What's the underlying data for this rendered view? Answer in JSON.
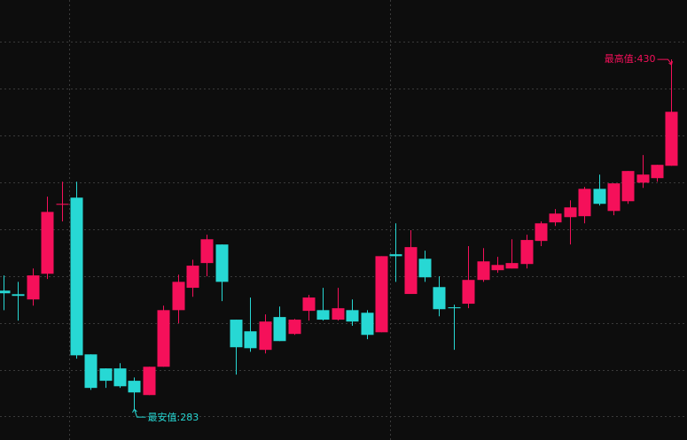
{
  "chart_data": {
    "type": "candlestick",
    "open": [
      332.8,
      331.3,
      329.1,
      339.9,
      368.9,
      371.9,
      306.0,
      300.1,
      300.1,
      294.9,
      288.9,
      300.8,
      324.6,
      334.0,
      344.4,
      352.2,
      320.6,
      315.7,
      307.9,
      321.7,
      314.6,
      324.3,
      324.6,
      320.6,
      324.6,
      323.5,
      315.3,
      348.1,
      331.4,
      346.2,
      334.3,
      325.8,
      327.3,
      337.3,
      341.4,
      342.1,
      344.0,
      353.7,
      361.5,
      363.7,
      364.1,
      375.6,
      366.3,
      370.4,
      378.2,
      380.1,
      385.3
    ],
    "high": [
      339.2,
      336.5,
      342.1,
      372.3,
      378.6,
      378.6,
      306.0,
      300.1,
      302.3,
      296.3,
      300.8,
      326.5,
      339.5,
      345.8,
      356.3,
      352.2,
      320.6,
      329.9,
      322.8,
      326.1,
      320.9,
      331.0,
      334.0,
      334.0,
      329.1,
      324.6,
      347.3,
      361.1,
      358.2,
      349.6,
      338.8,
      326.9,
      351.5,
      350.7,
      347.0,
      354.4,
      356.3,
      361.9,
      367.1,
      370.8,
      376.4,
      381.6,
      377.9,
      383.1,
      389.8,
      385.7,
      430
    ],
    "low": [
      324.6,
      320.2,
      326.5,
      337.7,
      361.9,
      304.2,
      291.1,
      291.9,
      291.9,
      283,
      288.9,
      300.8,
      319.1,
      330.2,
      338.8,
      328.4,
      297.5,
      307.1,
      306.4,
      311.6,
      314.2,
      320.2,
      320.2,
      320.2,
      318.0,
      312.4,
      315.3,
      336.5,
      331.4,
      336.5,
      322.0,
      307.9,
      325.4,
      336.5,
      340.3,
      342.1,
      342.1,
      351.5,
      360.0,
      352.2,
      361.1,
      368.6,
      364.5,
      369.3,
      376.0,
      378.6,
      385.3
    ],
    "close": [
      331.7,
      330.6,
      339.2,
      365.9,
      369.3,
      305.6,
      291.9,
      294.9,
      292.6,
      290.0,
      300.8,
      324.6,
      336.5,
      343.3,
      354.4,
      336.5,
      309.0,
      308.6,
      319.8,
      311.6,
      320.6,
      329.9,
      320.6,
      325.4,
      319.8,
      314.2,
      347.3,
      347.3,
      351.1,
      338.4,
      325.0,
      325.4,
      337.3,
      345.1,
      343.6,
      344.4,
      354.1,
      361.1,
      365.2,
      367.8,
      375.6,
      369.3,
      377.9,
      383.1,
      381.6,
      385.7,
      408.0
    ],
    "up_color": "#f5105a",
    "down_color": "#27d8d4",
    "ylim": [
      270,
      455
    ],
    "annotations": {
      "max": "最高值:430",
      "min": "最安值:283"
    }
  }
}
